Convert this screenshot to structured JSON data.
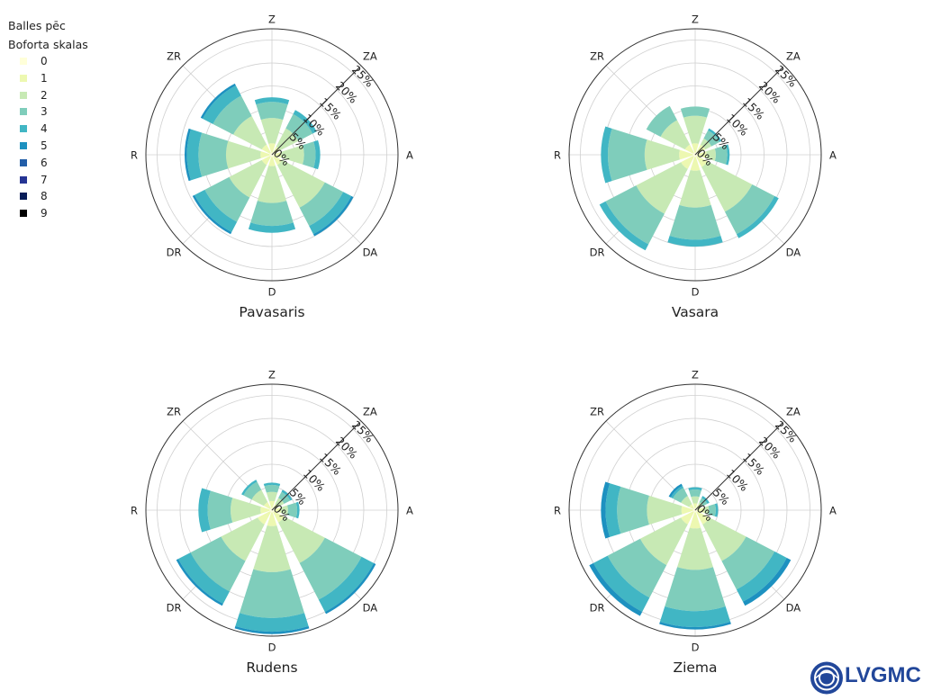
{
  "legend": {
    "title_line1": "Balles pēc",
    "title_line2": "Boforta skalas",
    "items": [
      {
        "label": "0",
        "color": "#ffffd9"
      },
      {
        "label": "1",
        "color": "#edf8b1"
      },
      {
        "label": "2",
        "color": "#c7e9b4"
      },
      {
        "label": "3",
        "color": "#7fcdbb"
      },
      {
        "label": "4",
        "color": "#41b6c4"
      },
      {
        "label": "5",
        "color": "#1d91c0"
      },
      {
        "label": "6",
        "color": "#225ea8"
      },
      {
        "label": "7",
        "color": "#253494"
      },
      {
        "label": "8",
        "color": "#081d58"
      },
      {
        "label": "9",
        "color": "#000000"
      }
    ]
  },
  "directions": [
    "Z",
    "ZA",
    "A",
    "DA",
    "D",
    "DR",
    "R",
    "ZR"
  ],
  "radial_ticks": [
    "0%",
    "5%",
    "10%",
    "15%",
    "20%",
    "25%"
  ],
  "logo": {
    "text": "LVGMC"
  },
  "chart_data": [
    {
      "type": "wind-rose",
      "title": "Pavasaris",
      "rmax": 25,
      "directions": [
        "Z",
        "ZA",
        "A",
        "DA",
        "D",
        "DR",
        "R",
        "ZR"
      ],
      "series": [
        {
          "name": "0",
          "values": [
            0.5,
            0.5,
            0.5,
            0.5,
            0.5,
            0.5,
            0.5,
            0.5
          ]
        },
        {
          "name": "1",
          "values": [
            2,
            1.5,
            1.5,
            2,
            2,
            2,
            2,
            2
          ]
        },
        {
          "name": "2",
          "values": [
            5.5,
            4.5,
            5,
            10.5,
            8,
            8,
            7.5,
            7
          ]
        },
        {
          "name": "3",
          "values": [
            3.5,
            3.5,
            2.5,
            4.5,
            5,
            6,
            6,
            5
          ]
        },
        {
          "name": "4",
          "values": [
            1,
            1,
            1,
            2,
            1.5,
            2.5,
            2.5,
            2.5
          ]
        },
        {
          "name": "5",
          "values": [
            0,
            0,
            0,
            0.5,
            0,
            0.5,
            0.5,
            0.5
          ]
        }
      ]
    },
    {
      "type": "wind-rose",
      "title": "Vasara",
      "rmax": 25,
      "directions": [
        "Z",
        "ZA",
        "A",
        "DA",
        "D",
        "DR",
        "R",
        "ZR"
      ],
      "series": [
        {
          "name": "0",
          "values": [
            0.5,
            0.5,
            0.5,
            0.5,
            0.5,
            0.5,
            0.5,
            0.5
          ]
        },
        {
          "name": "1",
          "values": [
            2,
            2,
            2,
            2.5,
            3,
            3,
            3,
            2
          ]
        },
        {
          "name": "2",
          "values": [
            6,
            1.5,
            2,
            11,
            8,
            11,
            7.5,
            6
          ]
        },
        {
          "name": "3",
          "values": [
            2,
            2,
            2.5,
            5.5,
            7,
            7.5,
            8,
            3.5
          ]
        },
        {
          "name": "4",
          "values": [
            0,
            0.5,
            0.5,
            1,
            1.5,
            1.5,
            1.5,
            0
          ]
        },
        {
          "name": "5",
          "values": [
            0,
            0,
            0,
            0,
            0,
            0,
            0,
            0
          ]
        }
      ]
    },
    {
      "type": "wind-rose",
      "title": "Rudens",
      "rmax": 25,
      "directions": [
        "Z",
        "ZA",
        "A",
        "DA",
        "D",
        "DR",
        "R",
        "ZR"
      ],
      "series": [
        {
          "name": "0",
          "values": [
            0.5,
            0.5,
            0.5,
            0.5,
            0.5,
            0.5,
            0.5,
            0.5
          ]
        },
        {
          "name": "1",
          "values": [
            1.5,
            1,
            1.5,
            2.5,
            3,
            3,
            2,
            1.5
          ]
        },
        {
          "name": "2",
          "values": [
            2,
            1.5,
            1.5,
            10,
            10,
            9,
            6.5,
            3
          ]
        },
        {
          "name": "3",
          "values": [
            1.5,
            1.5,
            2,
            9,
            10,
            7.5,
            5,
            2
          ]
        },
        {
          "name": "4",
          "values": [
            0.5,
            0.5,
            0.5,
            3,
            3,
            3,
            2,
            0.5
          ]
        },
        {
          "name": "5",
          "values": [
            0,
            0,
            0,
            0.5,
            0.5,
            0.5,
            0,
            0
          ]
        }
      ]
    },
    {
      "type": "wind-rose",
      "title": "Ziema",
      "rmax": 25,
      "directions": [
        "Z",
        "ZA",
        "A",
        "DA",
        "D",
        "DR",
        "R",
        "ZR"
      ],
      "series": [
        {
          "name": "0",
          "values": [
            0.5,
            0.5,
            0.5,
            0.5,
            0.5,
            0.5,
            0.5,
            0.5
          ]
        },
        {
          "name": "1",
          "values": [
            1,
            1,
            1.5,
            3,
            3.5,
            3,
            2.5,
            1
          ]
        },
        {
          "name": "2",
          "values": [
            1.5,
            0.5,
            1,
            9,
            9,
            10,
            7.5,
            2
          ]
        },
        {
          "name": "3",
          "values": [
            1.5,
            1,
            1.5,
            7,
            9,
            8,
            6.5,
            2
          ]
        },
        {
          "name": "4",
          "values": [
            0.5,
            0.5,
            0.5,
            3,
            3.5,
            3.5,
            2.5,
            0.5
          ]
        },
        {
          "name": "5",
          "values": [
            0,
            0,
            0,
            1,
            0.5,
            1,
            1,
            0.5
          ]
        }
      ]
    }
  ]
}
